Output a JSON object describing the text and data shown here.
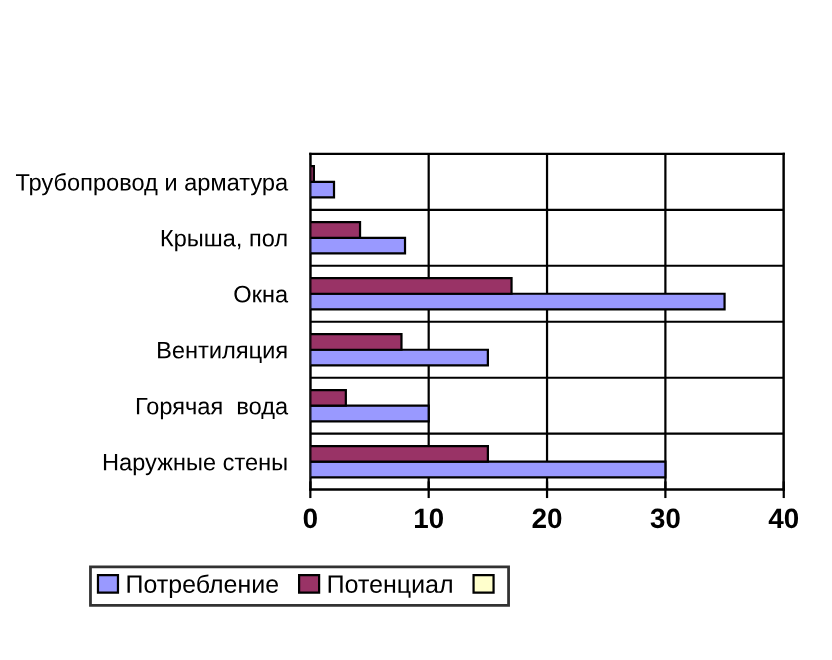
{
  "chart_data": {
    "type": "bar",
    "orientation": "horizontal",
    "categories": [
      "Трубопровод и арматура",
      "Крыша, пол",
      "Окна",
      "Вентиляция",
      "Горячая  вода",
      "Наружные стены"
    ],
    "series": [
      {
        "name": "Потребление",
        "color": "#9999ff",
        "values": [
          2,
          8,
          35,
          15,
          10,
          30
        ]
      },
      {
        "name": "Потенциал",
        "color": "#993366",
        "values": [
          0.3,
          4.2,
          17,
          7.7,
          3,
          15
        ]
      },
      {
        "color": "#ffffcc",
        "values": [
          null,
          null,
          null,
          null,
          null,
          null
        ]
      }
    ],
    "xlim": [
      0,
      40
    ],
    "xticks": [
      0,
      10,
      20,
      30,
      40
    ],
    "grid": true,
    "legend": "bottom"
  }
}
